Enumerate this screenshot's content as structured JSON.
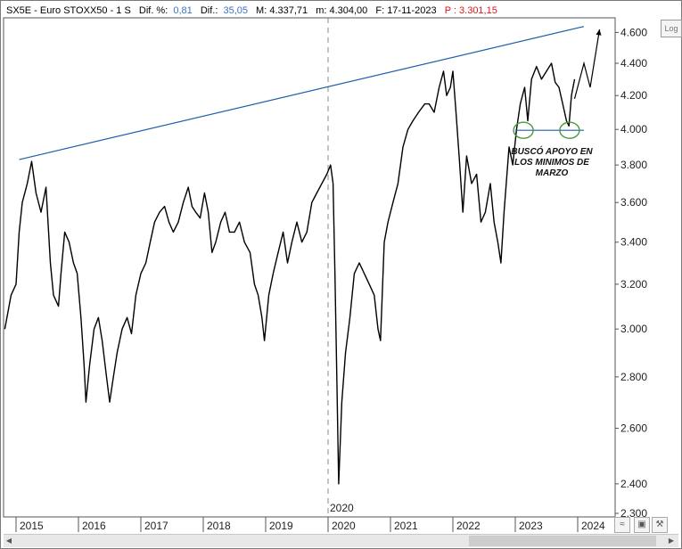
{
  "header": {
    "symbol": "SX5E - Euro STOXX50 - 1 S",
    "dif_pct_label": "Dif. %:",
    "dif_pct_value": "0,81",
    "dif_label": "Dif.:",
    "dif_value": "35,05",
    "max_text": "M: 4.337,71",
    "min_text": "m: 4.304,00",
    "date_text": "F: 17-11-2023",
    "p_text": "P : 3.301,15"
  },
  "log_button": "Log",
  "annotation": {
    "lines": [
      "BUSCÓ APOYO EN",
      "LOS MINIMOS DE",
      "MARZO"
    ]
  },
  "chart_data": {
    "type": "line",
    "title": "",
    "xlabel": "",
    "ylabel": "",
    "y_scale": "log",
    "ylim": [
      2300,
      4650
    ],
    "xlim": [
      2014.8,
      2024.6
    ],
    "y_ticks": [
      {
        "value": 4600,
        "label": "4.600"
      },
      {
        "value": 4400,
        "label": "4.400"
      },
      {
        "value": 4200,
        "label": "4.200"
      },
      {
        "value": 4000,
        "label": "4.000"
      },
      {
        "value": 3800,
        "label": "3.800"
      },
      {
        "value": 3600,
        "label": "3.600"
      },
      {
        "value": 3400,
        "label": "3.400"
      },
      {
        "value": 3200,
        "label": "3.200"
      },
      {
        "value": 3000,
        "label": "3.000"
      },
      {
        "value": 2800,
        "label": "2.800"
      },
      {
        "value": 2600,
        "label": "2.600"
      },
      {
        "value": 2400,
        "label": "2.400"
      },
      {
        "value": 2300,
        "label": "2.300"
      }
    ],
    "x_ticks": [
      {
        "value": 2015,
        "label": "2015"
      },
      {
        "value": 2016,
        "label": "2016"
      },
      {
        "value": 2017,
        "label": "2017"
      },
      {
        "value": 2018,
        "label": "2018"
      },
      {
        "value": 2019,
        "label": "2019"
      },
      {
        "value": 2020,
        "label": "2020"
      },
      {
        "value": 2021,
        "label": "2021"
      },
      {
        "value": 2022,
        "label": "2022"
      },
      {
        "value": 2023,
        "label": "2023"
      },
      {
        "value": 2024,
        "label": "2024"
      }
    ],
    "series": [
      {
        "color": "#000000",
        "points": [
          [
            2014.82,
            3000
          ],
          [
            2014.92,
            3150
          ],
          [
            2015.0,
            3200
          ],
          [
            2015.05,
            3450
          ],
          [
            2015.1,
            3600
          ],
          [
            2015.18,
            3700
          ],
          [
            2015.25,
            3820
          ],
          [
            2015.32,
            3650
          ],
          [
            2015.4,
            3550
          ],
          [
            2015.48,
            3680
          ],
          [
            2015.55,
            3300
          ],
          [
            2015.6,
            3150
          ],
          [
            2015.68,
            3100
          ],
          [
            2015.72,
            3250
          ],
          [
            2015.78,
            3450
          ],
          [
            2015.85,
            3400
          ],
          [
            2015.92,
            3300
          ],
          [
            2015.98,
            3250
          ],
          [
            2016.04,
            3050
          ],
          [
            2016.09,
            2850
          ],
          [
            2016.12,
            2700
          ],
          [
            2016.18,
            2850
          ],
          [
            2016.25,
            3000
          ],
          [
            2016.32,
            3050
          ],
          [
            2016.38,
            2950
          ],
          [
            2016.45,
            2800
          ],
          [
            2016.5,
            2700
          ],
          [
            2016.56,
            2800
          ],
          [
            2016.62,
            2900
          ],
          [
            2016.7,
            3000
          ],
          [
            2016.78,
            3050
          ],
          [
            2016.85,
            2980
          ],
          [
            2016.92,
            3150
          ],
          [
            2017.0,
            3250
          ],
          [
            2017.08,
            3300
          ],
          [
            2017.15,
            3400
          ],
          [
            2017.22,
            3500
          ],
          [
            2017.3,
            3550
          ],
          [
            2017.38,
            3580
          ],
          [
            2017.45,
            3500
          ],
          [
            2017.52,
            3450
          ],
          [
            2017.6,
            3500
          ],
          [
            2017.68,
            3600
          ],
          [
            2017.76,
            3680
          ],
          [
            2017.82,
            3580
          ],
          [
            2017.88,
            3550
          ],
          [
            2017.95,
            3520
          ],
          [
            2018.02,
            3650
          ],
          [
            2018.08,
            3550
          ],
          [
            2018.14,
            3350
          ],
          [
            2018.2,
            3400
          ],
          [
            2018.28,
            3500
          ],
          [
            2018.35,
            3550
          ],
          [
            2018.42,
            3450
          ],
          [
            2018.5,
            3450
          ],
          [
            2018.58,
            3500
          ],
          [
            2018.66,
            3400
          ],
          [
            2018.75,
            3350
          ],
          [
            2018.82,
            3200
          ],
          [
            2018.88,
            3150
          ],
          [
            2018.94,
            3050
          ],
          [
            2018.98,
            2950
          ],
          [
            2019.05,
            3150
          ],
          [
            2019.12,
            3250
          ],
          [
            2019.2,
            3350
          ],
          [
            2019.28,
            3450
          ],
          [
            2019.35,
            3300
          ],
          [
            2019.42,
            3400
          ],
          [
            2019.5,
            3500
          ],
          [
            2019.58,
            3400
          ],
          [
            2019.66,
            3450
          ],
          [
            2019.74,
            3600
          ],
          [
            2019.82,
            3650
          ],
          [
            2019.9,
            3700
          ],
          [
            2019.98,
            3750
          ],
          [
            2020.04,
            3800
          ],
          [
            2020.08,
            3700
          ],
          [
            2020.11,
            3250
          ],
          [
            2020.14,
            2800
          ],
          [
            2020.17,
            2400
          ],
          [
            2020.22,
            2700
          ],
          [
            2020.28,
            2900
          ],
          [
            2020.35,
            3050
          ],
          [
            2020.42,
            3250
          ],
          [
            2020.5,
            3300
          ],
          [
            2020.58,
            3250
          ],
          [
            2020.66,
            3200
          ],
          [
            2020.74,
            3150
          ],
          [
            2020.8,
            3000
          ],
          [
            2020.84,
            2950
          ],
          [
            2020.9,
            3400
          ],
          [
            2020.96,
            3500
          ],
          [
            2021.04,
            3600
          ],
          [
            2021.12,
            3700
          ],
          [
            2021.2,
            3900
          ],
          [
            2021.28,
            4000
          ],
          [
            2021.36,
            4050
          ],
          [
            2021.45,
            4100
          ],
          [
            2021.55,
            4150
          ],
          [
            2021.62,
            4150
          ],
          [
            2021.7,
            4100
          ],
          [
            2021.78,
            4250
          ],
          [
            2021.85,
            4350
          ],
          [
            2021.9,
            4200
          ],
          [
            2021.96,
            4250
          ],
          [
            2022.0,
            4350
          ],
          [
            2022.05,
            4100
          ],
          [
            2022.1,
            3850
          ],
          [
            2022.16,
            3550
          ],
          [
            2022.22,
            3850
          ],
          [
            2022.3,
            3700
          ],
          [
            2022.38,
            3750
          ],
          [
            2022.45,
            3500
          ],
          [
            2022.52,
            3550
          ],
          [
            2022.6,
            3700
          ],
          [
            2022.66,
            3500
          ],
          [
            2022.72,
            3400
          ],
          [
            2022.77,
            3300
          ],
          [
            2022.82,
            3550
          ],
          [
            2022.9,
            3900
          ],
          [
            2022.96,
            3800
          ],
          [
            2023.02,
            4000
          ],
          [
            2023.08,
            4150
          ],
          [
            2023.15,
            4250
          ],
          [
            2023.2,
            4050
          ],
          [
            2023.26,
            4300
          ],
          [
            2023.34,
            4380
          ],
          [
            2023.42,
            4300
          ],
          [
            2023.5,
            4350
          ],
          [
            2023.58,
            4400
          ],
          [
            2023.64,
            4280
          ],
          [
            2023.7,
            4250
          ],
          [
            2023.76,
            4150
          ],
          [
            2023.82,
            4050
          ],
          [
            2023.86,
            4020
          ],
          [
            2023.9,
            4200
          ],
          [
            2023.95,
            4300
          ]
        ]
      }
    ],
    "annotations": {
      "trendline": {
        "color": "#1f5fa8",
        "from": [
          2015.05,
          3830
        ],
        "to": [
          2024.1,
          4640
        ]
      },
      "support_line": {
        "color": "#1f5fa8",
        "value": 3995,
        "from": 2023.0,
        "to": 2024.1
      },
      "projection": {
        "color": "#000000",
        "points": [
          [
            2023.95,
            4180
          ],
          [
            2024.1,
            4400
          ],
          [
            2024.2,
            4250
          ],
          [
            2024.35,
            4620
          ]
        ]
      },
      "circles": {
        "color": "#4a9a3a",
        "centers": [
          [
            2023.13,
            3995
          ],
          [
            2023.87,
            3995
          ]
        ]
      },
      "year_marker": 2020
    }
  }
}
